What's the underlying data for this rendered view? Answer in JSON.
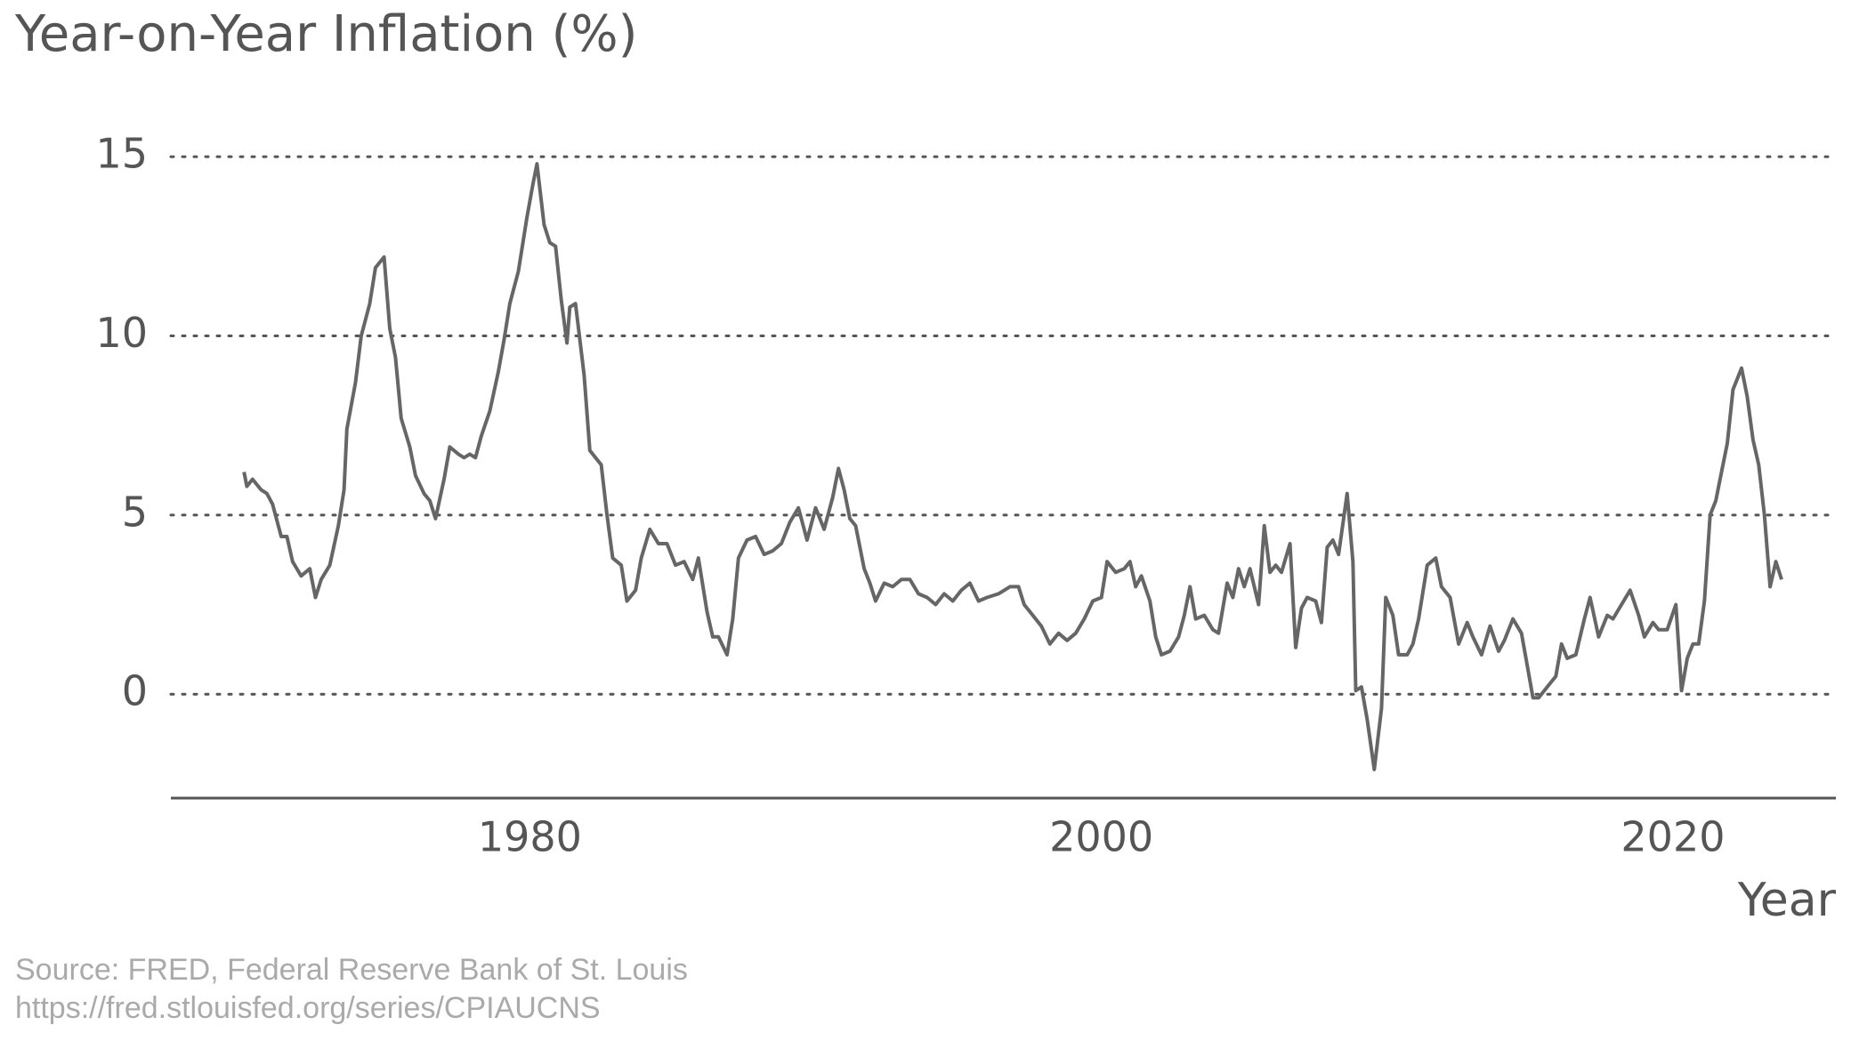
{
  "chart_data": {
    "type": "line",
    "title": "Year-on-Year Inflation (%)",
    "x_label": "Year",
    "source": [
      "Source: FRED, Federal Reserve Bank of St. Louis",
      "https://fred.stlouisfed.org/series/CPIAUCNS"
    ],
    "color": "#666666",
    "grid": true,
    "xlim": [
      1967.44,
      2025.7
    ],
    "xticks": [
      1980,
      2000,
      2020
    ],
    "ylim": [
      -2.9,
      15.3
    ],
    "yticks": [
      0,
      5,
      10,
      15
    ],
    "x": [
      1970.0,
      1970.1,
      1970.3,
      1970.6,
      1970.8,
      1971.0,
      1971.3,
      1971.5,
      1971.7,
      1972.0,
      1972.3,
      1972.5,
      1972.7,
      1973.0,
      1973.3,
      1973.5,
      1973.6,
      1973.9,
      1974.1,
      1974.4,
      1974.6,
      1974.9,
      1975.1,
      1975.3,
      1975.5,
      1975.8,
      1976.0,
      1976.3,
      1976.5,
      1976.7,
      1977.0,
      1977.2,
      1977.5,
      1977.7,
      1977.9,
      1978.1,
      1978.3,
      1978.6,
      1978.9,
      1979.1,
      1979.3,
      1979.6,
      1979.9,
      1980.1,
      1980.25,
      1980.5,
      1980.7,
      1980.9,
      1981.1,
      1981.3,
      1981.4,
      1981.6,
      1981.9,
      1982.1,
      1982.3,
      1982.5,
      1982.7,
      1982.9,
      1983.2,
      1983.4,
      1983.7,
      1983.9,
      1984.2,
      1984.5,
      1984.8,
      1985.1,
      1985.4,
      1985.7,
      1985.9,
      1986.2,
      1986.4,
      1986.6,
      1986.9,
      1987.1,
      1987.3,
      1987.6,
      1987.9,
      1988.2,
      1988.5,
      1988.8,
      1989.1,
      1989.4,
      1989.7,
      1990.0,
      1990.3,
      1990.6,
      1990.8,
      1991.0,
      1991.2,
      1991.4,
      1991.7,
      1991.9,
      1992.1,
      1992.4,
      1992.7,
      1993.0,
      1993.3,
      1993.6,
      1993.9,
      1994.2,
      1994.5,
      1994.8,
      1995.1,
      1995.4,
      1995.7,
      1996.0,
      1996.4,
      1996.8,
      1997.1,
      1997.3,
      1997.6,
      1997.9,
      1998.2,
      1998.5,
      1998.8,
      1999.1,
      1999.4,
      1999.7,
      2000.0,
      2000.2,
      2000.5,
      2000.8,
      2001.0,
      2001.2,
      2001.4,
      2001.7,
      2001.9,
      2002.1,
      2002.4,
      2002.7,
      2002.9,
      2003.1,
      2003.3,
      2003.6,
      2003.9,
      2004.1,
      2004.4,
      2004.6,
      2004.8,
      2005.0,
      2005.2,
      2005.5,
      2005.7,
      2005.9,
      2006.1,
      2006.3,
      2006.6,
      2006.8,
      2007.0,
      2007.2,
      2007.5,
      2007.7,
      2007.9,
      2008.1,
      2008.3,
      2008.6,
      2008.8,
      2008.9,
      2009.1,
      2009.3,
      2009.55,
      2009.8,
      2009.95,
      2010.2,
      2010.4,
      2010.7,
      2010.9,
      2011.1,
      2011.4,
      2011.7,
      2011.9,
      2012.2,
      2012.5,
      2012.8,
      2013.0,
      2013.3,
      2013.6,
      2013.9,
      2014.1,
      2014.4,
      2014.7,
      2014.9,
      2015.1,
      2015.3,
      2015.6,
      2015.9,
      2016.1,
      2016.3,
      2016.6,
      2016.9,
      2017.1,
      2017.4,
      2017.7,
      2017.9,
      2018.2,
      2018.5,
      2018.8,
      2019.0,
      2019.3,
      2019.5,
      2019.8,
      2020.1,
      2020.3,
      2020.5,
      2020.7,
      2020.9,
      2021.1,
      2021.3,
      2021.5,
      2021.7,
      2021.9,
      2022.1,
      2022.4,
      2022.6,
      2022.8,
      2023.0,
      2023.2,
      2023.4,
      2023.6,
      2023.8
    ],
    "values": [
      6.2,
      5.8,
      6.0,
      5.7,
      5.6,
      5.3,
      4.4,
      4.4,
      3.7,
      3.3,
      3.5,
      2.7,
      3.2,
      3.6,
      4.7,
      5.7,
      7.4,
      8.7,
      10.0,
      10.9,
      11.9,
      12.2,
      10.2,
      9.4,
      7.7,
      6.9,
      6.1,
      5.6,
      5.4,
      4.9,
      6.0,
      6.9,
      6.7,
      6.6,
      6.7,
      6.6,
      7.2,
      7.9,
      9.0,
      9.9,
      10.9,
      11.8,
      13.3,
      14.2,
      14.8,
      13.1,
      12.6,
      12.5,
      11.0,
      9.8,
      10.8,
      10.9,
      8.9,
      6.8,
      6.6,
      6.4,
      5.0,
      3.8,
      3.6,
      2.6,
      2.9,
      3.8,
      4.6,
      4.2,
      4.2,
      3.6,
      3.7,
      3.2,
      3.8,
      2.3,
      1.6,
      1.6,
      1.1,
      2.1,
      3.8,
      4.3,
      4.4,
      3.9,
      4.0,
      4.2,
      4.8,
      5.2,
      4.3,
      5.2,
      4.6,
      5.5,
      6.3,
      5.7,
      4.9,
      4.7,
      3.5,
      3.1,
      2.6,
      3.1,
      3.0,
      3.2,
      3.2,
      2.8,
      2.7,
      2.5,
      2.8,
      2.6,
      2.9,
      3.1,
      2.6,
      2.7,
      2.8,
      3.0,
      3.0,
      2.5,
      2.2,
      1.9,
      1.4,
      1.7,
      1.5,
      1.7,
      2.1,
      2.6,
      2.7,
      3.7,
      3.4,
      3.5,
      3.7,
      3.0,
      3.3,
      2.6,
      1.6,
      1.1,
      1.2,
      1.6,
      2.2,
      3.0,
      2.1,
      2.2,
      1.8,
      1.7,
      3.1,
      2.7,
      3.5,
      3.0,
      3.5,
      2.5,
      4.7,
      3.4,
      3.6,
      3.4,
      4.2,
      1.3,
      2.4,
      2.7,
      2.6,
      2.0,
      4.1,
      4.3,
      3.9,
      5.6,
      3.7,
      0.1,
      0.2,
      -0.7,
      -2.1,
      -0.4,
      2.7,
      2.2,
      1.1,
      1.1,
      1.4,
      2.1,
      3.6,
      3.8,
      3.0,
      2.7,
      1.4,
      2.0,
      1.6,
      1.1,
      1.9,
      1.2,
      1.5,
      2.1,
      1.7,
      0.8,
      -0.1,
      -0.1,
      0.2,
      0.5,
      1.4,
      1.0,
      1.1,
      2.1,
      2.7,
      1.6,
      2.2,
      2.1,
      2.5,
      2.9,
      2.2,
      1.6,
      2.0,
      1.8,
      1.8,
      2.5,
      0.1,
      1.0,
      1.4,
      1.4,
      2.6,
      5.0,
      5.4,
      6.2,
      7.0,
      8.5,
      9.1,
      8.3,
      7.1,
      6.4,
      5.0,
      3.0,
      3.7,
      3.2
    ]
  }
}
